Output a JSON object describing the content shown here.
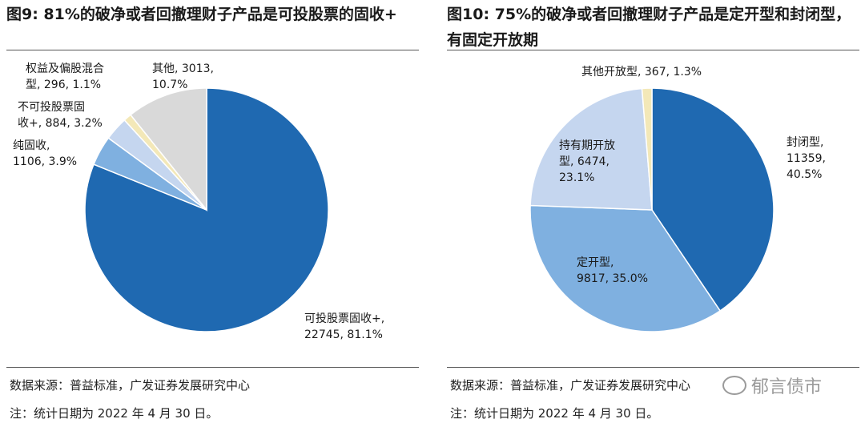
{
  "left": {
    "title": "图9: 81%的破净或者回撤理财子产品是可投股票的固收+",
    "source": "数据来源：普益标准，广发证券发展研究中心",
    "note": "注：统计日期为 2022 年 4 月 30 日。"
  },
  "right": {
    "title": "图10: 75%的破净或者回撤理财子产品是定开型和封闭型，有固定开放期",
    "source": "数据来源：普益标准，广发证券发展研究中心",
    "note": "注：统计日期为 2022 年 4 月 30 日。"
  },
  "watermark": {
    "text": "郁言债市"
  },
  "chart_data": [
    {
      "type": "pie",
      "title": "图9: 81%的破净或者回撤理财子产品是可投股票的固收+",
      "slices": [
        {
          "name": "可投股票固收+",
          "value": 22745,
          "pct": "81.1%",
          "color": "#1f69b1",
          "label_lines": [
            "可投股票固收+,",
            "22745, 81.1%"
          ]
        },
        {
          "name": "纯固收",
          "value": 1106,
          "pct": "3.9%",
          "color": "#7fb0e0",
          "label_lines": [
            "纯固收,",
            "1106, 3.9%"
          ]
        },
        {
          "name": "不可投股票固收+",
          "value": 884,
          "pct": "3.2%",
          "color": "#c5d6ef",
          "label_lines": [
            "不可投股票固",
            "收+, 884, 3.2%"
          ]
        },
        {
          "name": "权益及偏股混合型",
          "value": 296,
          "pct": "1.1%",
          "color": "#f3e8b8",
          "label_lines": [
            "权益及偏股混合",
            "型, 296, 1.1%"
          ]
        },
        {
          "name": "其他",
          "value": 3013,
          "pct": "10.7%",
          "color": "#d9d9d9",
          "label_lines": [
            "其他, 3013,",
            "10.7%"
          ]
        }
      ]
    },
    {
      "type": "pie",
      "title": "图10: 75%的破净或者回撤理财子产品是定开型和封闭型，有固定开放期",
      "slices": [
        {
          "name": "封闭型",
          "value": 11359,
          "pct": "40.5%",
          "color": "#1f69b1",
          "label_lines": [
            "封闭型,",
            "11359,",
            "40.5%"
          ]
        },
        {
          "name": "定开型",
          "value": 9817,
          "pct": "35.0%",
          "color": "#7fb0e0",
          "label_lines": [
            "定开型,",
            "9817, 35.0%"
          ]
        },
        {
          "name": "持有期开放型",
          "value": 6474,
          "pct": "23.1%",
          "color": "#c5d6ef",
          "label_lines": [
            "持有期开放",
            "型, 6474,",
            "23.1%"
          ]
        },
        {
          "name": "其他开放型",
          "value": 367,
          "pct": "1.3%",
          "color": "#f3e8b8",
          "label_lines": [
            "其他开放型, 367, 1.3%"
          ]
        }
      ]
    }
  ]
}
